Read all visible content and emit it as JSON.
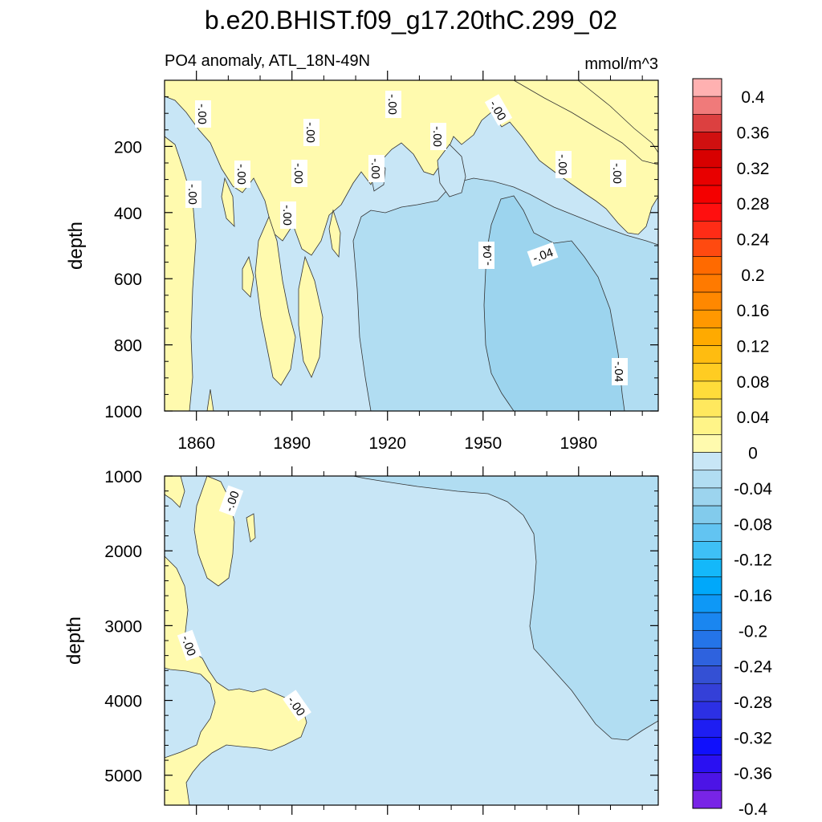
{
  "title": "b.e20.BHIST.f09_g17.20thC.299_02",
  "subtitle_left": "PO4 anomaly, ATL_18N-49N",
  "subtitle_right": "mmol/m^3",
  "chart_data": [
    {
      "type": "heatmap",
      "panel": "upper",
      "ylabel": "depth",
      "y_reversed": true,
      "ylim": [
        0,
        1000
      ],
      "xlim": [
        1850,
        2005
      ],
      "yticks": [
        200,
        400,
        600,
        800,
        1000
      ],
      "xticks": [
        1860,
        1890,
        1920,
        1950,
        1980
      ],
      "contour_labels": [
        "-.00",
        "-.00",
        "-.00",
        "-.00",
        "-.00",
        "-.00",
        "-.00",
        "-.00",
        "-.00",
        "-.00",
        "-.00",
        "-.00",
        "-.04",
        "-.04",
        "-.04"
      ],
      "regions": [
        {
          "level": "0 to 0.02",
          "description": "positive patches mainly above 500 m"
        },
        {
          "level": "-0.02 to 0",
          "description": "background"
        },
        {
          "level": "-0.04 to -0.02",
          "description": "from ~1910 below 250 m"
        },
        {
          "level": "-0.06 to -0.04",
          "description": "core 1952-1995, 300-1000 m"
        }
      ]
    },
    {
      "type": "heatmap",
      "panel": "lower",
      "ylabel": "depth",
      "y_reversed": true,
      "ylim": [
        1000,
        5400
      ],
      "xlim": [
        1850,
        2005
      ],
      "yticks": [
        1000,
        2000,
        3000,
        4000,
        5000
      ],
      "xticks": [
        1860,
        1890,
        1920,
        1950,
        1980
      ],
      "contour_labels": [
        "-.00",
        "-.00",
        "-.00"
      ],
      "regions": [
        {
          "level": "0 to 0.02",
          "description": "patches 1850-1895"
        },
        {
          "level": "-0.02 to 0",
          "description": "background"
        },
        {
          "level": "-0.04 to -0.02",
          "description": "from ~1965 below 1000 m to ~4500 m"
        }
      ]
    }
  ],
  "colorbar": {
    "labels": [
      "0.4",
      "0.36",
      "0.32",
      "0.28",
      "0.24",
      "0.2",
      "0.16",
      "0.12",
      "0.08",
      "0.04",
      "0",
      "-0.04",
      "-0.08",
      "-0.12",
      "-0.16",
      "-0.2",
      "-0.24",
      "-0.28",
      "-0.32",
      "-0.36",
      "-0.4"
    ],
    "colors": [
      "#FFB1B1",
      "#F07A7A",
      "#DC4040",
      "#D01010",
      "#D80000",
      "#E80000",
      "#F40000",
      "#FF0F0F",
      "#FF2C16",
      "#FF4A10",
      "#FF6A00",
      "#FF7A00",
      "#FF8800",
      "#FF9800",
      "#FFAA00",
      "#FFBC10",
      "#FFCC22",
      "#FFDC3A",
      "#FFE85E",
      "#FFF488",
      "#FFFAAE",
      "#C8E6F6",
      "#B1DDF2",
      "#9CD4EE",
      "#82CBEC",
      "#62C4F2",
      "#3EC0F6",
      "#14B8FA",
      "#00A8FA",
      "#0E98F6",
      "#1A86F0",
      "#2474E8",
      "#2E62DE",
      "#3450D4",
      "#3440D8",
      "#2C30E4",
      "#1E1EF2",
      "#1010FC",
      "#2A10F2",
      "#4C14E6",
      "#7824E6"
    ],
    "colors_note": "top to bottom"
  },
  "fill_colors": {
    "pos": "#FFFAAE",
    "neg1": "#C8E6F6",
    "neg2": "#B1DDF2",
    "neg3": "#9CD4EE"
  }
}
